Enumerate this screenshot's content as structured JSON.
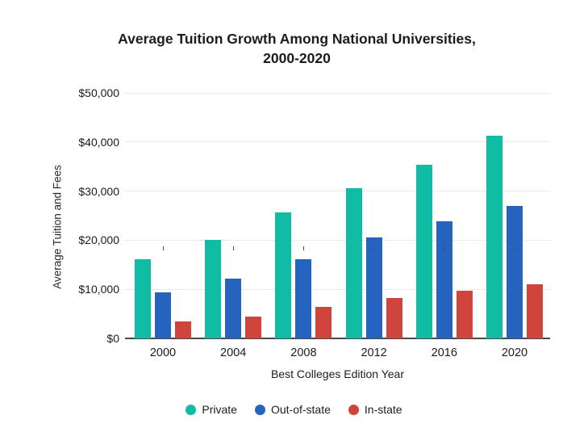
{
  "title": {
    "line1": "Average Tuition Growth Among National Universities,",
    "line2": "2000-2020"
  },
  "colors": {
    "private": "#10bca4",
    "out_of_state": "#2563be",
    "in_state": "#cf453d",
    "gridline": "#e9e9e9",
    "axis_line": "#4a4a4a",
    "text": "#1c1c1c"
  },
  "chart_data": {
    "type": "bar",
    "title": "Average Tuition Growth Among National Universities, 2000-2020",
    "xlabel": "Best Colleges Edition Year",
    "ylabel": "Average Tuition and Fees",
    "categories": [
      "2000",
      "2004",
      "2008",
      "2012",
      "2016",
      "2020"
    ],
    "series": [
      {
        "name": "Private",
        "color": "#10bca4",
        "values": [
          16200,
          20000,
          25600,
          30600,
          35400,
          41300
        ]
      },
      {
        "name": "Out-of-state",
        "color": "#2563be",
        "values": [
          9400,
          12200,
          16200,
          20500,
          23900,
          27000
        ]
      },
      {
        "name": "In-state",
        "color": "#cf453d",
        "values": [
          3400,
          4500,
          6500,
          8300,
          9700,
          11100
        ]
      }
    ],
    "y_ticks": [
      "$0",
      "$10,000",
      "$20,000",
      "$30,000",
      "$40,000",
      "$50,000"
    ],
    "y_tick_values": [
      0,
      10000,
      20000,
      30000,
      40000,
      50000
    ],
    "ylim": [
      0,
      50000
    ],
    "grid": true,
    "legend_position": "bottom"
  }
}
